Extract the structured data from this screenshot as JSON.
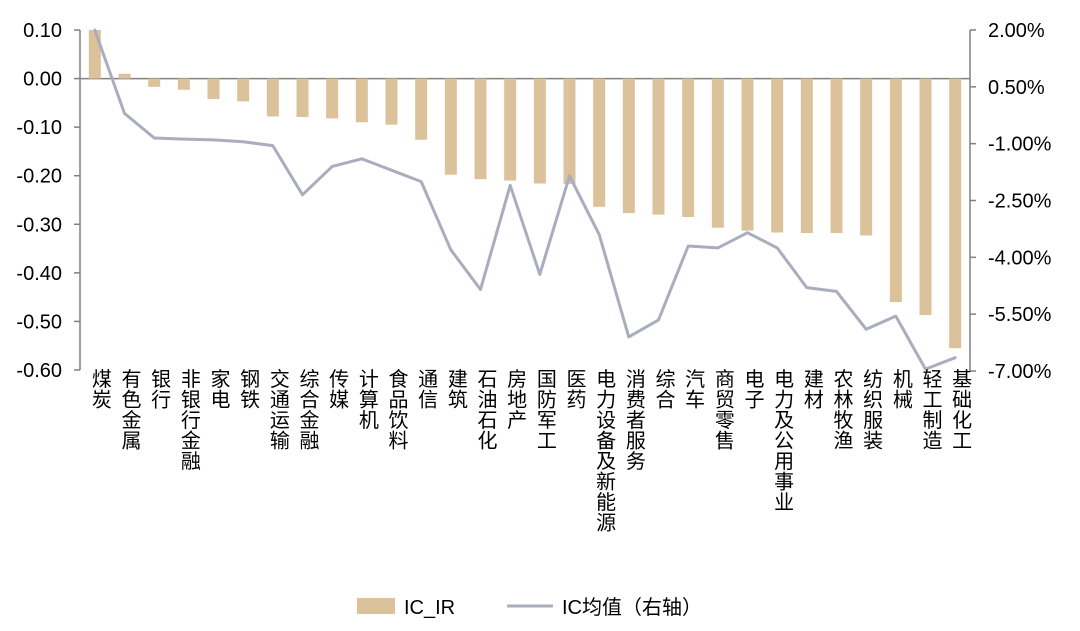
{
  "chart_data": {
    "type": "bar",
    "categories": [
      "煤炭",
      "有色金属",
      "银行",
      "非银行金融",
      "家电",
      "钢铁",
      "交通运输",
      "综合金融",
      "传媒",
      "计算机",
      "食品饮料",
      "通信",
      "建筑",
      "石油石化",
      "房地产",
      "国防军工",
      "医药",
      "电力设备及新能源",
      "消费者服务",
      "综合",
      "汽车",
      "商贸零售",
      "电子",
      "电力及公用事业",
      "建材",
      "农林牧渔",
      "纺织服装",
      "机械",
      "轻工制造",
      "基础化工"
    ],
    "series": [
      {
        "name": "IC_IR",
        "type": "bar",
        "axis": "left",
        "color": "#dcc29a",
        "values": [
          0.1,
          0.01,
          -0.017,
          -0.023,
          -0.042,
          -0.047,
          -0.078,
          -0.079,
          -0.082,
          -0.09,
          -0.095,
          -0.126,
          -0.198,
          -0.207,
          -0.21,
          -0.216,
          -0.217,
          -0.264,
          -0.277,
          -0.28,
          -0.285,
          -0.307,
          -0.313,
          -0.317,
          -0.318,
          -0.318,
          -0.323,
          -0.46,
          -0.487,
          -0.555
        ]
      },
      {
        "name": "IC均值（右轴）",
        "type": "line",
        "axis": "right",
        "color": "#a9adbe",
        "values": [
          2.0,
          -0.2,
          -0.85,
          -0.88,
          -0.9,
          -0.95,
          -1.05,
          -2.35,
          -1.6,
          -1.4,
          -1.7,
          -2.0,
          -3.8,
          -4.85,
          -2.1,
          -4.45,
          -1.85,
          -3.4,
          -6.1,
          -5.65,
          -3.7,
          -3.75,
          -3.35,
          -3.75,
          -4.8,
          -4.9,
          -5.9,
          -5.55,
          -6.95,
          -6.65
        ]
      }
    ],
    "y_left": {
      "ylim": [
        -0.6,
        0.1
      ],
      "ticks": [
        "0.10",
        "0.00",
        "-0.10",
        "-0.20",
        "-0.30",
        "-0.40",
        "-0.50",
        "-0.60"
      ]
    },
    "y_right": {
      "ylim": [
        -7.0,
        2.0
      ],
      "ticks": [
        "2.00%",
        "0.50%",
        "-1.00%",
        "-2.50%",
        "-4.00%",
        "-5.50%",
        "-7.00%"
      ]
    },
    "legend": {
      "position": "bottom",
      "labels": [
        "IC_IR",
        "IC均值（右轴）"
      ]
    },
    "grid": false
  }
}
